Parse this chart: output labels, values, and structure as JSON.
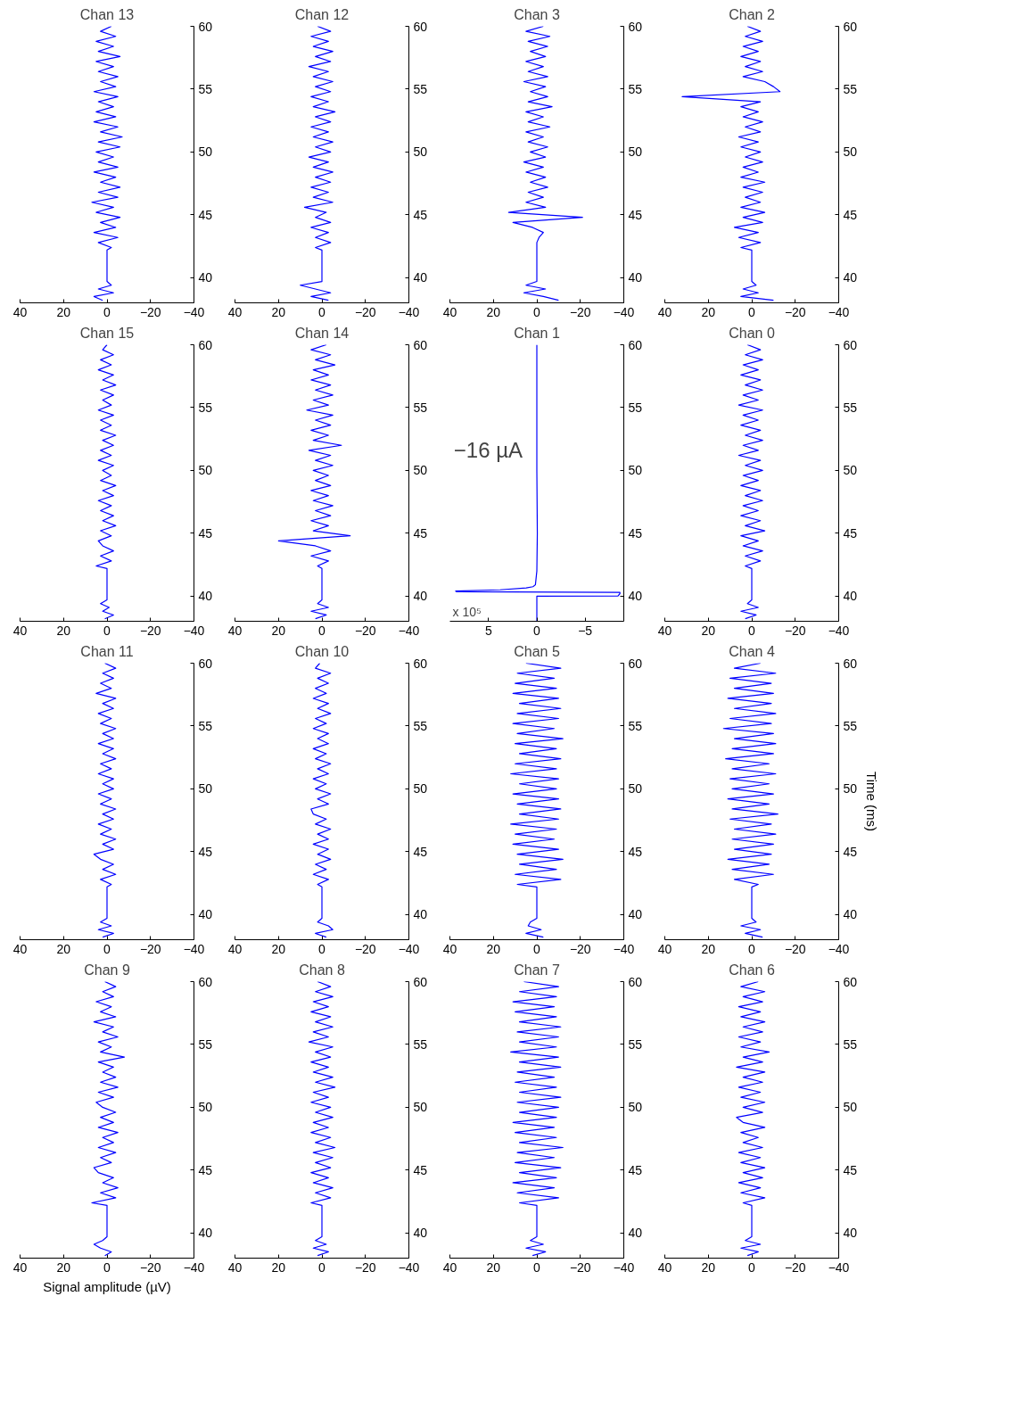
{
  "chart_data": [
    {
      "type": "line",
      "orientation": "horizontal",
      "title": "Chan 13",
      "color": "#0000ff",
      "ylim": [
        38,
        60
      ],
      "yticks": [
        40,
        45,
        50,
        55,
        60
      ],
      "xlim": [
        40,
        -40
      ],
      "xticks": [
        -40,
        -20,
        0,
        20,
        40
      ],
      "x": [
        38.2,
        38.5,
        38.8,
        39.1,
        39.4,
        39.7,
        42.2,
        42.4,
        42.8,
        43.2,
        43.6,
        44.0,
        44.4,
        44.8,
        45.2,
        45.6,
        46.0,
        46.4,
        46.8,
        47.2,
        47.6,
        48.0,
        48.4,
        48.8,
        49.2,
        49.6,
        50.0,
        50.4,
        50.8,
        51.2,
        51.6,
        52.0,
        52.4,
        52.8,
        53.2,
        53.6,
        54.0,
        54.4,
        54.8,
        55.2,
        55.6,
        56.0,
        56.4,
        56.8,
        57.2,
        57.6,
        58.0,
        58.4,
        58.8,
        59.2,
        59.6,
        60.0
      ],
      "values": [
        2,
        6,
        -3,
        4,
        -2,
        0,
        0,
        -2,
        4,
        -5,
        6,
        -4,
        3,
        -6,
        5,
        -3,
        7,
        -5,
        4,
        -6,
        3,
        -4,
        6,
        -5,
        4,
        -3,
        5,
        -6,
        4,
        -7,
        3,
        -5,
        6,
        -4,
        5,
        -3,
        4,
        -5,
        6,
        -4,
        3,
        -5,
        4,
        -3,
        5,
        -6,
        4,
        -3,
        5,
        -4,
        3,
        -2
      ]
    },
    {
      "type": "line",
      "orientation": "horizontal",
      "title": "Chan 12",
      "color": "#0000ff",
      "ylim": [
        38,
        60
      ],
      "yticks": [
        40,
        45,
        50,
        55,
        60
      ],
      "xlim": [
        40,
        -40
      ],
      "xticks": [
        -40,
        -20,
        0,
        20,
        40
      ],
      "x": [
        38.2,
        38.5,
        38.8,
        39.1,
        39.4,
        39.7,
        42.2,
        42.4,
        42.8,
        43.2,
        43.6,
        44.0,
        44.4,
        44.8,
        45.2,
        45.6,
        46.0,
        46.4,
        46.8,
        47.2,
        47.6,
        48.0,
        48.4,
        48.8,
        49.2,
        49.6,
        50.0,
        50.4,
        50.8,
        51.2,
        51.6,
        52.0,
        52.4,
        52.8,
        53.2,
        53.6,
        54.0,
        54.4,
        54.8,
        55.2,
        55.6,
        56.0,
        56.4,
        56.8,
        57.2,
        57.6,
        58.0,
        58.4,
        58.8,
        59.2,
        59.6,
        60.0
      ],
      "values": [
        -3,
        5,
        -4,
        3,
        10,
        0,
        0,
        3,
        -4,
        3,
        -3,
        5,
        -4,
        3,
        -2,
        8,
        -5,
        4,
        -3,
        5,
        -4,
        3,
        -5,
        4,
        -3,
        6,
        -4,
        3,
        -5,
        4,
        -3,
        5,
        -4,
        3,
        -6,
        4,
        -3,
        5,
        -4,
        3,
        -5,
        4,
        -3,
        6,
        -4,
        3,
        -5,
        4,
        -3,
        5,
        -4,
        2
      ]
    },
    {
      "type": "line",
      "orientation": "horizontal",
      "title": "Chan 3",
      "color": "#0000ff",
      "ylim": [
        38,
        60
      ],
      "yticks": [
        40,
        45,
        50,
        55,
        60
      ],
      "xlim": [
        40,
        -40
      ],
      "xticks": [
        -40,
        -20,
        0,
        20,
        40
      ],
      "x": [
        38.2,
        38.5,
        38.8,
        39.1,
        39.4,
        39.7,
        42.2,
        42.4,
        42.8,
        43.2,
        43.6,
        44.0,
        44.4,
        44.8,
        45.2,
        45.6,
        46.0,
        46.4,
        46.8,
        47.2,
        47.6,
        48.0,
        48.4,
        48.8,
        49.2,
        49.6,
        50.0,
        50.4,
        50.8,
        51.2,
        51.6,
        52.0,
        52.4,
        52.8,
        53.2,
        53.6,
        54.0,
        54.4,
        54.8,
        55.2,
        55.6,
        56.0,
        56.4,
        56.8,
        57.2,
        57.6,
        58.0,
        58.4,
        58.8,
        59.2,
        59.6,
        60.0
      ],
      "values": [
        -10,
        -3,
        6,
        -4,
        5,
        0,
        0,
        0,
        0,
        -1,
        -3,
        2,
        11,
        -21,
        13,
        -4,
        5,
        -3,
        4,
        -5,
        3,
        -4,
        5,
        -3,
        6,
        -4,
        3,
        -5,
        4,
        -3,
        5,
        -6,
        4,
        -3,
        5,
        -7,
        4,
        -5,
        3,
        -4,
        6,
        -5,
        4,
        -3,
        5,
        -4,
        3,
        -5,
        4,
        -6,
        5,
        -3
      ]
    },
    {
      "type": "line",
      "orientation": "horizontal",
      "title": "Chan 2",
      "color": "#0000ff",
      "ylim": [
        38,
        60
      ],
      "yticks": [
        40,
        45,
        50,
        55,
        60
      ],
      "xlim": [
        40,
        -40
      ],
      "xticks": [
        -40,
        -20,
        0,
        20,
        40
      ],
      "x": [
        38.2,
        38.5,
        38.8,
        39.1,
        39.4,
        39.7,
        42.2,
        42.4,
        42.8,
        43.2,
        43.6,
        44.0,
        44.4,
        44.8,
        45.2,
        45.6,
        46.0,
        46.4,
        46.8,
        47.2,
        47.6,
        48.0,
        48.4,
        48.8,
        49.2,
        49.6,
        50.0,
        50.4,
        50.8,
        51.2,
        51.6,
        52.0,
        52.4,
        52.8,
        53.2,
        53.6,
        54.0,
        54.4,
        54.8,
        55.2,
        55.6,
        56.0,
        56.4,
        56.8,
        57.2,
        57.6,
        58.0,
        58.4,
        58.8,
        59.2,
        59.6,
        60.0
      ],
      "values": [
        -10,
        5,
        -3,
        4,
        -2,
        0,
        0,
        5,
        -4,
        6,
        -3,
        8,
        -5,
        4,
        -6,
        5,
        -4,
        3,
        -5,
        4,
        -6,
        5,
        -3,
        4,
        -5,
        3,
        -4,
        5,
        -3,
        6,
        -4,
        3,
        -5,
        4,
        -3,
        5,
        -4,
        32,
        -13,
        -10,
        -6,
        4,
        -5,
        3,
        -4,
        5,
        -3,
        4,
        -5,
        3,
        -4,
        2
      ]
    },
    {
      "type": "line",
      "orientation": "horizontal",
      "title": "Chan 15",
      "color": "#0000ff",
      "ylim": [
        38,
        60
      ],
      "yticks": [
        40,
        45,
        50,
        55,
        60
      ],
      "xlim": [
        40,
        -40
      ],
      "xticks": [
        -40,
        -20,
        0,
        20,
        40
      ],
      "x": [
        38.2,
        38.5,
        38.8,
        39.1,
        39.4,
        39.7,
        42.2,
        42.4,
        42.8,
        43.2,
        43.6,
        44.0,
        44.4,
        44.8,
        45.2,
        45.6,
        46.0,
        46.4,
        46.8,
        47.2,
        47.6,
        48.0,
        48.4,
        48.8,
        49.2,
        49.6,
        50.0,
        50.4,
        50.8,
        51.2,
        51.6,
        52.0,
        52.4,
        52.8,
        53.2,
        53.6,
        54.0,
        54.4,
        54.8,
        55.2,
        55.6,
        56.0,
        56.4,
        56.8,
        57.2,
        57.6,
        58.0,
        58.4,
        58.8,
        59.2,
        59.6,
        60.0
      ],
      "values": [
        1,
        -3,
        2,
        -1,
        3,
        0,
        0,
        5,
        -2,
        3,
        -3,
        2,
        4,
        -2,
        3,
        -4,
        2,
        -3,
        3,
        -2,
        4,
        -3,
        2,
        -4,
        3,
        -2,
        2,
        -3,
        4,
        -2,
        3,
        -3,
        2,
        -4,
        3,
        -2,
        3,
        -3,
        4,
        -2,
        2,
        -3,
        3,
        -4,
        2,
        -3,
        4,
        -2,
        3,
        -3,
        2,
        0
      ]
    },
    {
      "type": "line",
      "orientation": "horizontal",
      "title": "Chan 14",
      "color": "#0000ff",
      "ylim": [
        38,
        60
      ],
      "yticks": [
        40,
        45,
        50,
        55,
        60
      ],
      "xlim": [
        40,
        -40
      ],
      "xticks": [
        -40,
        -20,
        0,
        20,
        40
      ],
      "x": [
        38.2,
        38.5,
        38.8,
        39.1,
        39.4,
        39.7,
        42.2,
        42.4,
        42.8,
        43.2,
        43.6,
        44.0,
        44.4,
        44.8,
        45.2,
        45.6,
        46.0,
        46.4,
        46.8,
        47.2,
        47.6,
        48.0,
        48.4,
        48.8,
        49.2,
        49.6,
        50.0,
        50.4,
        50.8,
        51.2,
        51.6,
        52.0,
        52.4,
        52.8,
        53.2,
        53.6,
        54.0,
        54.4,
        54.8,
        55.2,
        55.6,
        56.0,
        56.4,
        56.8,
        57.2,
        57.6,
        58.0,
        58.4,
        58.8,
        59.2,
        59.6,
        60.0
      ],
      "values": [
        3,
        -2,
        5,
        -3,
        2,
        0,
        0,
        2,
        -3,
        5,
        -4,
        3,
        20,
        -13,
        4,
        -3,
        5,
        -4,
        3,
        -5,
        4,
        -3,
        5,
        -4,
        3,
        -3,
        4,
        -5,
        3,
        -4,
        6,
        -9,
        4,
        -3,
        5,
        -4,
        3,
        -5,
        7,
        -3,
        4,
        -5,
        3,
        -4,
        5,
        -3,
        4,
        -6,
        3,
        -4,
        5,
        -2
      ]
    },
    {
      "type": "line",
      "orientation": "horizontal",
      "title": "Chan 1",
      "annotations": [
        "x 10⁵",
        "−16 µA"
      ],
      "color": "#0000ff",
      "ylim": [
        38,
        60
      ],
      "yticks": [
        40,
        45,
        50,
        55,
        60
      ],
      "xlim": [
        9,
        -9
      ],
      "xticks": [
        -5,
        0,
        5
      ],
      "x": [
        38.0,
        40.0,
        40.02,
        40.2,
        40.3,
        40.35,
        40.4,
        40.5,
        40.65,
        40.75,
        40.9,
        42.0,
        45.0,
        50.0,
        60.0
      ],
      "values": [
        0,
        0,
        -8.4,
        -8.6,
        -8.6,
        8.3,
        8.4,
        3.8,
        1.1,
        0.4,
        0.15,
        0,
        -0.05,
        0,
        0
      ]
    },
    {
      "type": "line",
      "orientation": "horizontal",
      "title": "Chan 0",
      "color": "#0000ff",
      "ylim": [
        38,
        60
      ],
      "yticks": [
        40,
        45,
        50,
        55,
        60
      ],
      "xlim": [
        40,
        -40
      ],
      "xticks": [
        -40,
        -20,
        0,
        20,
        40
      ],
      "x": [
        38.2,
        38.5,
        38.8,
        39.1,
        39.4,
        39.7,
        42.2,
        42.4,
        42.8,
        43.2,
        43.6,
        44.0,
        44.4,
        44.8,
        45.2,
        45.6,
        46.0,
        46.4,
        46.8,
        47.2,
        47.6,
        48.0,
        48.4,
        48.8,
        49.2,
        49.6,
        50.0,
        50.4,
        50.8,
        51.2,
        51.6,
        52.0,
        52.4,
        52.8,
        53.2,
        53.6,
        54.0,
        54.4,
        54.8,
        55.2,
        55.6,
        56.0,
        56.4,
        56.8,
        57.2,
        57.6,
        58.0,
        58.4,
        58.8,
        59.2,
        59.6,
        60.0
      ],
      "values": [
        3,
        -2,
        5,
        -3,
        2,
        0,
        0,
        3,
        -4,
        3,
        -5,
        4,
        -3,
        5,
        -6,
        3,
        -4,
        5,
        -3,
        4,
        -5,
        3,
        -4,
        5,
        -3,
        4,
        -5,
        3,
        -4,
        6,
        -3,
        4,
        -5,
        3,
        -4,
        5,
        -3,
        4,
        -5,
        6,
        -3,
        4,
        -5,
        3,
        -4,
        5,
        -3,
        4,
        -5,
        3,
        -4,
        2
      ]
    },
    {
      "type": "line",
      "orientation": "horizontal",
      "title": "Chan 11",
      "color": "#0000ff",
      "ylim": [
        38,
        60
      ],
      "yticks": [
        40,
        45,
        50,
        55,
        60
      ],
      "xlim": [
        40,
        -40
      ],
      "xticks": [
        -40,
        -20,
        0,
        20,
        40
      ],
      "x": [
        38.2,
        38.5,
        38.8,
        39.1,
        39.4,
        39.7,
        42.2,
        42.4,
        42.8,
        43.2,
        43.6,
        44.0,
        44.4,
        44.8,
        45.2,
        45.6,
        46.0,
        46.4,
        46.8,
        47.2,
        47.6,
        48.0,
        48.4,
        48.8,
        49.2,
        49.6,
        50.0,
        50.4,
        50.8,
        51.2,
        51.6,
        52.0,
        52.4,
        52.8,
        53.2,
        53.6,
        54.0,
        54.4,
        54.8,
        55.2,
        55.6,
        56.0,
        56.4,
        56.8,
        57.2,
        57.6,
        58.0,
        58.4,
        58.8,
        59.2,
        59.6,
        60.0
      ],
      "values": [
        2,
        -3,
        4,
        -2,
        3,
        0,
        0,
        -2,
        3,
        -4,
        2,
        -3,
        3,
        6,
        -3,
        2,
        -4,
        3,
        -2,
        4,
        -3,
        2,
        -4,
        3,
        -2,
        4,
        -3,
        2,
        -3,
        4,
        -2,
        3,
        -4,
        2,
        -3,
        4,
        -3,
        2,
        -4,
        3,
        -2,
        4,
        -3,
        2,
        -4,
        5,
        -2,
        3,
        -3,
        2,
        -4,
        1
      ]
    },
    {
      "type": "line",
      "orientation": "horizontal",
      "title": "Chan 10",
      "color": "#0000ff",
      "ylim": [
        38,
        60
      ],
      "yticks": [
        40,
        45,
        50,
        55,
        60
      ],
      "xlim": [
        40,
        -40
      ],
      "xticks": [
        -40,
        -20,
        0,
        20,
        40
      ],
      "x": [
        38.2,
        38.5,
        38.8,
        39.1,
        39.4,
        39.7,
        42.2,
        42.4,
        42.8,
        43.2,
        43.6,
        44.0,
        44.4,
        44.8,
        45.2,
        45.6,
        46.0,
        46.4,
        46.8,
        47.2,
        47.6,
        48.0,
        48.4,
        48.8,
        49.2,
        49.6,
        50.0,
        50.4,
        50.8,
        51.2,
        51.6,
        52.0,
        52.4,
        52.8,
        53.2,
        53.6,
        54.0,
        54.4,
        54.8,
        55.2,
        55.6,
        56.0,
        56.4,
        56.8,
        57.2,
        57.6,
        58.0,
        58.4,
        58.8,
        59.2,
        59.6,
        60.0
      ],
      "values": [
        -2,
        3,
        -5,
        -3,
        2,
        0,
        0,
        2,
        -3,
        4,
        -2,
        3,
        -4,
        2,
        -3,
        4,
        -3,
        2,
        -4,
        3,
        -2,
        4,
        5,
        -3,
        2,
        -4,
        3,
        -2,
        4,
        -3,
        2,
        -4,
        3,
        -2,
        4,
        -3,
        2,
        -3,
        4,
        -2,
        3,
        -4,
        2,
        -3,
        4,
        -2,
        3,
        -3,
        2,
        -4,
        3,
        1
      ]
    },
    {
      "type": "line",
      "orientation": "horizontal",
      "title": "Chan 5",
      "color": "#0000ff",
      "ylim": [
        38,
        60
      ],
      "yticks": [
        40,
        45,
        50,
        55,
        60
      ],
      "xlim": [
        40,
        -40
      ],
      "xticks": [
        -40,
        -20,
        0,
        20,
        40
      ],
      "x": [
        38.2,
        38.5,
        38.8,
        39.1,
        39.4,
        39.7,
        42.2,
        42.4,
        42.8,
        43.2,
        43.6,
        44.0,
        44.4,
        44.8,
        45.2,
        45.6,
        46.0,
        46.4,
        46.8,
        47.2,
        47.6,
        48.0,
        48.4,
        48.8,
        49.2,
        49.6,
        50.0,
        50.4,
        50.8,
        51.2,
        51.6,
        52.0,
        52.4,
        52.8,
        53.2,
        53.6,
        54.0,
        54.4,
        54.8,
        55.2,
        55.6,
        56.0,
        56.4,
        56.8,
        57.2,
        57.6,
        58.0,
        58.4,
        58.8,
        59.2,
        59.6,
        60.0
      ],
      "values": [
        -3,
        5,
        -2,
        4,
        3,
        0,
        0,
        9,
        -11,
        10,
        -9,
        8,
        -12,
        9,
        -10,
        11,
        -8,
        10,
        -9,
        12,
        -10,
        8,
        -11,
        9,
        -10,
        11,
        -9,
        8,
        -10,
        12,
        -9,
        10,
        -11,
        8,
        -9,
        10,
        -12,
        9,
        -8,
        11,
        -10,
        9,
        -11,
        8,
        -10,
        11,
        -9,
        10,
        -8,
        9,
        -11,
        5
      ]
    },
    {
      "type": "line",
      "orientation": "horizontal",
      "title": "Chan 4",
      "ylabel": "Time (ms)",
      "color": "#0000ff",
      "ylim": [
        38,
        60
      ],
      "yticks": [
        40,
        45,
        50,
        55,
        60
      ],
      "xlim": [
        40,
        -40
      ],
      "xticks": [
        -40,
        -20,
        0,
        20,
        40
      ],
      "x": [
        38.2,
        38.5,
        38.8,
        39.1,
        39.4,
        39.7,
        42.2,
        42.4,
        42.8,
        43.2,
        43.6,
        44.0,
        44.4,
        44.8,
        45.2,
        45.6,
        46.0,
        46.4,
        46.8,
        47.2,
        47.6,
        48.0,
        48.4,
        48.8,
        49.2,
        49.6,
        50.0,
        50.4,
        50.8,
        51.2,
        51.6,
        52.0,
        52.4,
        52.8,
        53.2,
        53.6,
        54.0,
        54.4,
        54.8,
        55.2,
        55.6,
        56.0,
        56.4,
        56.8,
        57.2,
        57.6,
        58.0,
        58.4,
        58.8,
        59.2,
        59.6,
        60.0
      ],
      "values": [
        -5,
        3,
        -4,
        5,
        -2,
        0,
        0,
        -3,
        8,
        -10,
        9,
        -8,
        11,
        -9,
        8,
        -10,
        9,
        -11,
        8,
        -9,
        10,
        -12,
        9,
        -8,
        11,
        -10,
        9,
        -8,
        10,
        -11,
        9,
        -8,
        12,
        -10,
        9,
        -11,
        8,
        -10,
        13,
        -9,
        10,
        -11,
        8,
        -9,
        11,
        -10,
        8,
        -9,
        10,
        -11,
        8,
        -4
      ]
    },
    {
      "type": "line",
      "orientation": "horizontal",
      "title": "Chan 9",
      "xlabel": "Signal amplitude (µV)",
      "color": "#0000ff",
      "ylim": [
        38,
        60
      ],
      "yticks": [
        40,
        45,
        50,
        55,
        60
      ],
      "xlim": [
        40,
        -40
      ],
      "xticks": [
        -40,
        -20,
        0,
        20,
        40
      ],
      "x": [
        38.2,
        38.5,
        38.8,
        39.1,
        39.4,
        39.7,
        42.2,
        42.4,
        42.8,
        43.2,
        43.6,
        44.0,
        44.4,
        44.8,
        45.2,
        45.6,
        46.0,
        46.4,
        46.8,
        47.2,
        47.6,
        48.0,
        48.4,
        48.8,
        49.2,
        49.6,
        50.0,
        50.4,
        50.8,
        51.2,
        51.6,
        52.0,
        52.4,
        52.8,
        53.2,
        53.6,
        54.0,
        54.4,
        54.8,
        55.2,
        55.6,
        56.0,
        56.4,
        56.8,
        57.2,
        57.6,
        58.0,
        58.4,
        58.8,
        59.2,
        59.6,
        60.0
      ],
      "values": [
        1,
        -2,
        3,
        6,
        2,
        0,
        0,
        7,
        -4,
        3,
        -5,
        2,
        -3,
        4,
        6,
        -2,
        3,
        -4,
        4,
        -3,
        2,
        -5,
        4,
        -3,
        3,
        -4,
        2,
        5,
        -3,
        4,
        -5,
        3,
        -4,
        2,
        -3,
        4,
        -8,
        3,
        -2,
        4,
        -5,
        2,
        -3,
        6,
        -4,
        3,
        -2,
        5,
        -3,
        2,
        -4,
        1
      ]
    },
    {
      "type": "line",
      "orientation": "horizontal",
      "title": "Chan 8",
      "color": "#0000ff",
      "ylim": [
        38,
        60
      ],
      "yticks": [
        40,
        45,
        50,
        55,
        60
      ],
      "xlim": [
        40,
        -40
      ],
      "xticks": [
        -40,
        -20,
        0,
        20,
        40
      ],
      "x": [
        38.2,
        38.5,
        38.8,
        39.1,
        39.4,
        39.7,
        42.2,
        42.4,
        42.8,
        43.2,
        43.6,
        44.0,
        44.4,
        44.8,
        45.2,
        45.6,
        46.0,
        46.4,
        46.8,
        47.2,
        47.6,
        48.0,
        48.4,
        48.8,
        49.2,
        49.6,
        50.0,
        50.4,
        50.8,
        51.2,
        51.6,
        52.0,
        52.4,
        52.8,
        53.2,
        53.6,
        54.0,
        54.4,
        54.8,
        55.2,
        55.6,
        56.0,
        56.4,
        56.8,
        57.2,
        57.6,
        58.0,
        58.4,
        58.8,
        59.2,
        59.6,
        60.0
      ],
      "values": [
        2,
        -3,
        4,
        -2,
        3,
        0,
        0,
        5,
        -4,
        3,
        -5,
        4,
        -3,
        5,
        -4,
        3,
        -5,
        4,
        -6,
        3,
        -4,
        5,
        -3,
        4,
        -5,
        3,
        -4,
        5,
        -3,
        4,
        -6,
        3,
        -5,
        4,
        -3,
        5,
        -4,
        3,
        -5,
        6,
        -3,
        4,
        -5,
        3,
        -4,
        5,
        -3,
        4,
        -5,
        3,
        -4,
        2
      ]
    },
    {
      "type": "line",
      "orientation": "horizontal",
      "title": "Chan 7",
      "color": "#0000ff",
      "ylim": [
        38,
        60
      ],
      "yticks": [
        40,
        45,
        50,
        55,
        60
      ],
      "xlim": [
        40,
        -40
      ],
      "xticks": [
        -40,
        -20,
        0,
        20,
        40
      ],
      "x": [
        38.2,
        38.5,
        38.8,
        39.1,
        39.4,
        39.7,
        42.2,
        42.4,
        42.8,
        43.2,
        43.6,
        44.0,
        44.4,
        44.8,
        45.2,
        45.6,
        46.0,
        46.4,
        46.8,
        47.2,
        47.6,
        48.0,
        48.4,
        48.8,
        49.2,
        49.6,
        50.0,
        50.4,
        50.8,
        51.2,
        51.6,
        52.0,
        52.4,
        52.8,
        53.2,
        53.6,
        54.0,
        54.4,
        54.8,
        55.2,
        55.6,
        56.0,
        56.4,
        56.8,
        57.2,
        57.6,
        58.0,
        58.4,
        58.8,
        59.2,
        59.6,
        60.0
      ],
      "values": [
        2,
        -4,
        5,
        -3,
        3,
        0,
        0,
        8,
        -10,
        9,
        -8,
        11,
        -9,
        8,
        -11,
        10,
        -8,
        9,
        -12,
        8,
        -9,
        10,
        -8,
        11,
        -9,
        8,
        -10,
        9,
        -11,
        8,
        -9,
        10,
        -8,
        9,
        -11,
        8,
        -10,
        12,
        -9,
        8,
        -10,
        9,
        -11,
        8,
        -9,
        10,
        -8,
        11,
        -9,
        8,
        -10,
        6
      ]
    },
    {
      "type": "line",
      "orientation": "horizontal",
      "title": "Chan 6",
      "color": "#0000ff",
      "ylim": [
        38,
        60
      ],
      "yticks": [
        40,
        45,
        50,
        55,
        60
      ],
      "xlim": [
        40,
        -40
      ],
      "xticks": [
        -40,
        -20,
        0,
        20,
        40
      ],
      "x": [
        38.2,
        38.5,
        38.8,
        39.1,
        39.4,
        39.7,
        42.2,
        42.4,
        42.8,
        43.2,
        43.6,
        44.0,
        44.4,
        44.8,
        45.2,
        45.6,
        46.0,
        46.4,
        46.8,
        47.2,
        47.6,
        48.0,
        48.4,
        48.8,
        49.2,
        49.6,
        50.0,
        50.4,
        50.8,
        51.2,
        51.6,
        52.0,
        52.4,
        52.8,
        53.2,
        53.6,
        54.0,
        54.4,
        54.8,
        55.2,
        55.6,
        56.0,
        56.4,
        56.8,
        57.2,
        57.6,
        58.0,
        58.4,
        58.8,
        59.2,
        59.6,
        60.0
      ],
      "values": [
        2,
        -3,
        5,
        -4,
        3,
        0,
        0,
        4,
        -6,
        5,
        -4,
        6,
        -5,
        4,
        -6,
        5,
        -4,
        6,
        -5,
        4,
        -3,
        5,
        -6,
        4,
        7,
        -5,
        4,
        -6,
        5,
        -4,
        6,
        -5,
        4,
        -6,
        7,
        -5,
        4,
        -8,
        5,
        -4,
        6,
        -5,
        4,
        -6,
        5,
        -4,
        6,
        -5,
        4,
        -6,
        5,
        -3
      ]
    }
  ]
}
